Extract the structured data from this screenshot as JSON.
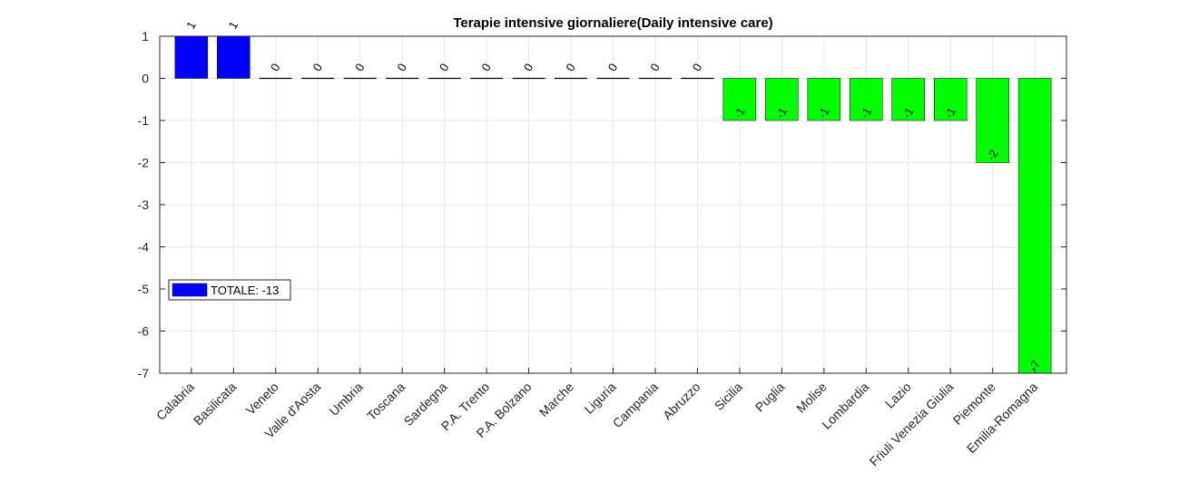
{
  "chart_data": {
    "type": "bar",
    "title": "Terapie intensive giornaliere(Daily intensive care)",
    "xlabel": "",
    "ylabel": "",
    "categories": [
      "Calabria",
      "Basilicata",
      "Veneto",
      "Valle d'Aosta",
      "Umbria",
      "Toscana",
      "Sardegna",
      "P.A. Trento",
      "P.A. Bolzano",
      "Marche",
      "Liguria",
      "Campania",
      "Abruzzo",
      "Sicilia",
      "Puglia",
      "Molise",
      "Lombardia",
      "Lazio",
      "Friuli Venezia Giulia",
      "Piemonte",
      "Emilia-Romagna"
    ],
    "values": [
      1,
      1,
      0,
      0,
      0,
      0,
      0,
      0,
      0,
      0,
      0,
      0,
      0,
      -1,
      -1,
      -1,
      -1,
      -1,
      -1,
      -2,
      -7
    ],
    "data_labels": [
      "1",
      "1",
      "0",
      "0",
      "0",
      "0",
      "0",
      "0",
      "0",
      "0",
      "0",
      "0",
      "0",
      "-1",
      "-1",
      "-1",
      "-1",
      "-1",
      "-1",
      "-2",
      "-7"
    ],
    "ylim": [
      -7,
      1
    ],
    "yticks": [
      1,
      0,
      -1,
      -2,
      -3,
      -4,
      -5,
      -6,
      -7
    ],
    "grid": true,
    "legend": {
      "label": "TOTALE: -13",
      "placement": "left"
    },
    "colors": {
      "positive": "#0000ff",
      "negative": "#00ff00",
      "zero": "#000000"
    }
  }
}
